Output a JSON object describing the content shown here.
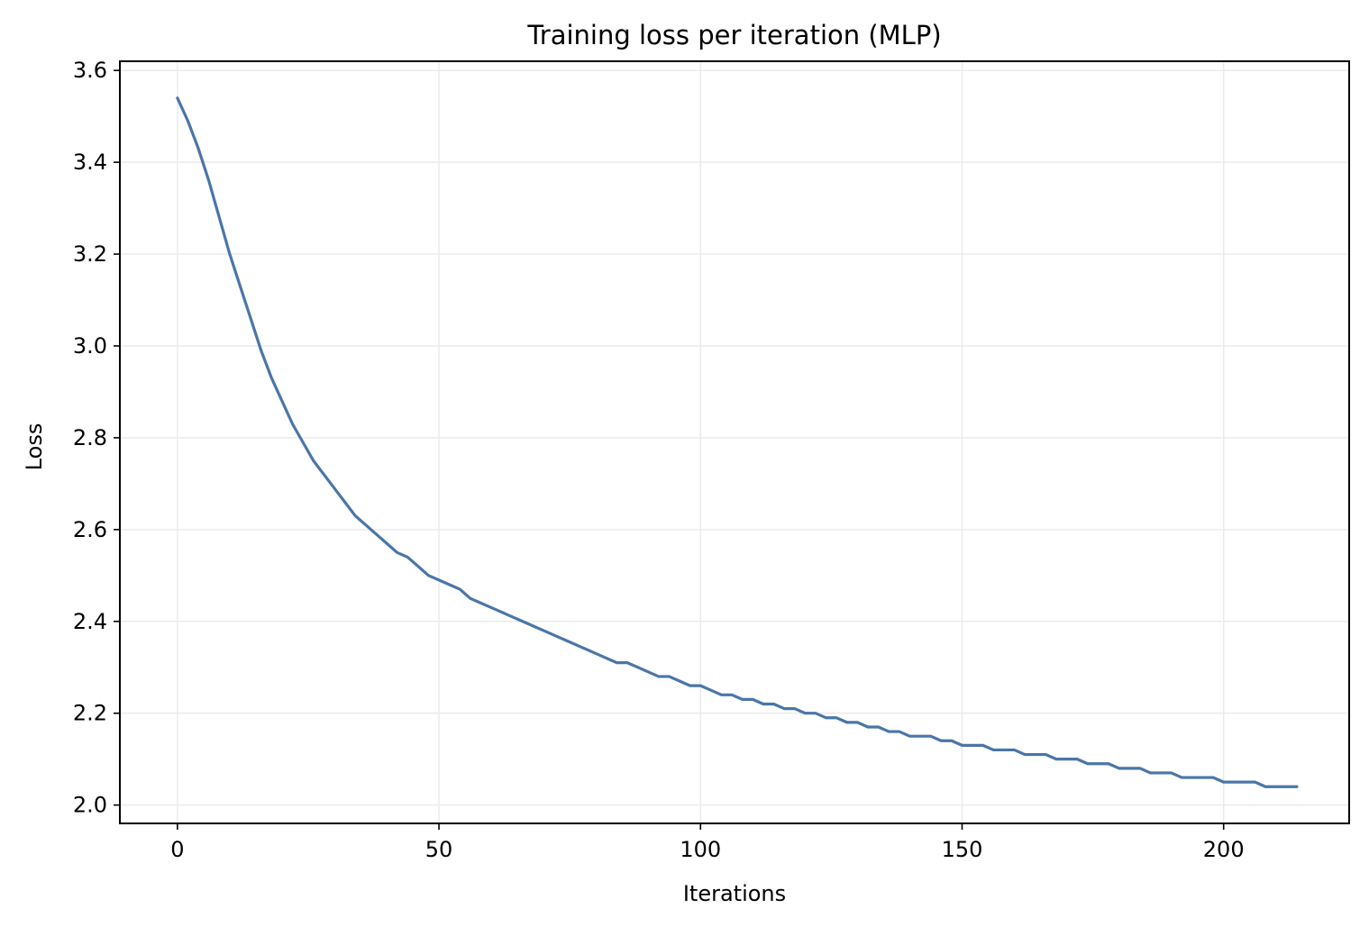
{
  "chart_data": {
    "type": "line",
    "title": "Training loss per iteration (MLP)",
    "xlabel": "Iterations",
    "ylabel": "Loss",
    "xlim": [
      -11,
      224
    ],
    "ylim": [
      1.96,
      3.62
    ],
    "xticks": [
      0,
      50,
      100,
      150,
      200
    ],
    "yticks": [
      2.0,
      2.2,
      2.4,
      2.6,
      2.8,
      3.0,
      3.2,
      3.4,
      3.6
    ],
    "xtick_labels": [
      "0",
      "50",
      "100",
      "150",
      "200"
    ],
    "ytick_labels": [
      "2.0",
      "2.2",
      "2.4",
      "2.6",
      "2.8",
      "3.0",
      "3.2",
      "3.4",
      "3.6"
    ],
    "grid": true,
    "line_color": "#4a76a8",
    "series": [
      {
        "x": [
          0,
          2,
          4,
          6,
          8,
          10,
          12,
          14,
          16,
          18,
          20,
          22,
          24,
          26,
          28,
          30,
          32,
          34,
          36,
          38,
          40,
          42,
          44,
          46,
          48,
          50,
          52,
          54,
          56,
          58,
          60,
          62,
          64,
          66,
          68,
          70,
          72,
          74,
          76,
          78,
          80,
          82,
          84,
          86,
          88,
          90,
          92,
          94,
          96,
          98,
          100,
          102,
          104,
          106,
          108,
          110,
          112,
          114,
          116,
          118,
          120,
          122,
          124,
          126,
          128,
          130,
          132,
          134,
          136,
          138,
          140,
          142,
          144,
          146,
          148,
          150,
          152,
          154,
          156,
          158,
          160,
          162,
          164,
          166,
          168,
          170,
          172,
          174,
          176,
          178,
          180,
          182,
          184,
          186,
          188,
          190,
          192,
          194,
          196,
          198,
          200,
          202,
          204,
          206,
          208,
          210,
          212,
          214
        ],
        "values": [
          3.54,
          3.49,
          3.43,
          3.36,
          3.28,
          3.2,
          3.13,
          3.06,
          2.99,
          2.93,
          2.88,
          2.83,
          2.79,
          2.75,
          2.72,
          2.69,
          2.66,
          2.63,
          2.61,
          2.59,
          2.57,
          2.55,
          2.54,
          2.52,
          2.5,
          2.49,
          2.48,
          2.47,
          2.45,
          2.44,
          2.43,
          2.42,
          2.41,
          2.4,
          2.39,
          2.38,
          2.37,
          2.36,
          2.35,
          2.34,
          2.33,
          2.32,
          2.31,
          2.31,
          2.3,
          2.29,
          2.28,
          2.28,
          2.27,
          2.26,
          2.26,
          2.25,
          2.24,
          2.24,
          2.23,
          2.23,
          2.22,
          2.22,
          2.21,
          2.21,
          2.2,
          2.2,
          2.19,
          2.19,
          2.18,
          2.18,
          2.17,
          2.17,
          2.16,
          2.16,
          2.15,
          2.15,
          2.15,
          2.14,
          2.14,
          2.13,
          2.13,
          2.13,
          2.12,
          2.12,
          2.12,
          2.11,
          2.11,
          2.11,
          2.1,
          2.1,
          2.1,
          2.09,
          2.09,
          2.09,
          2.08,
          2.08,
          2.08,
          2.07,
          2.07,
          2.07,
          2.06,
          2.06,
          2.06,
          2.06,
          2.05,
          2.05,
          2.05,
          2.05,
          2.04,
          2.04,
          2.04,
          2.04
        ]
      }
    ]
  }
}
